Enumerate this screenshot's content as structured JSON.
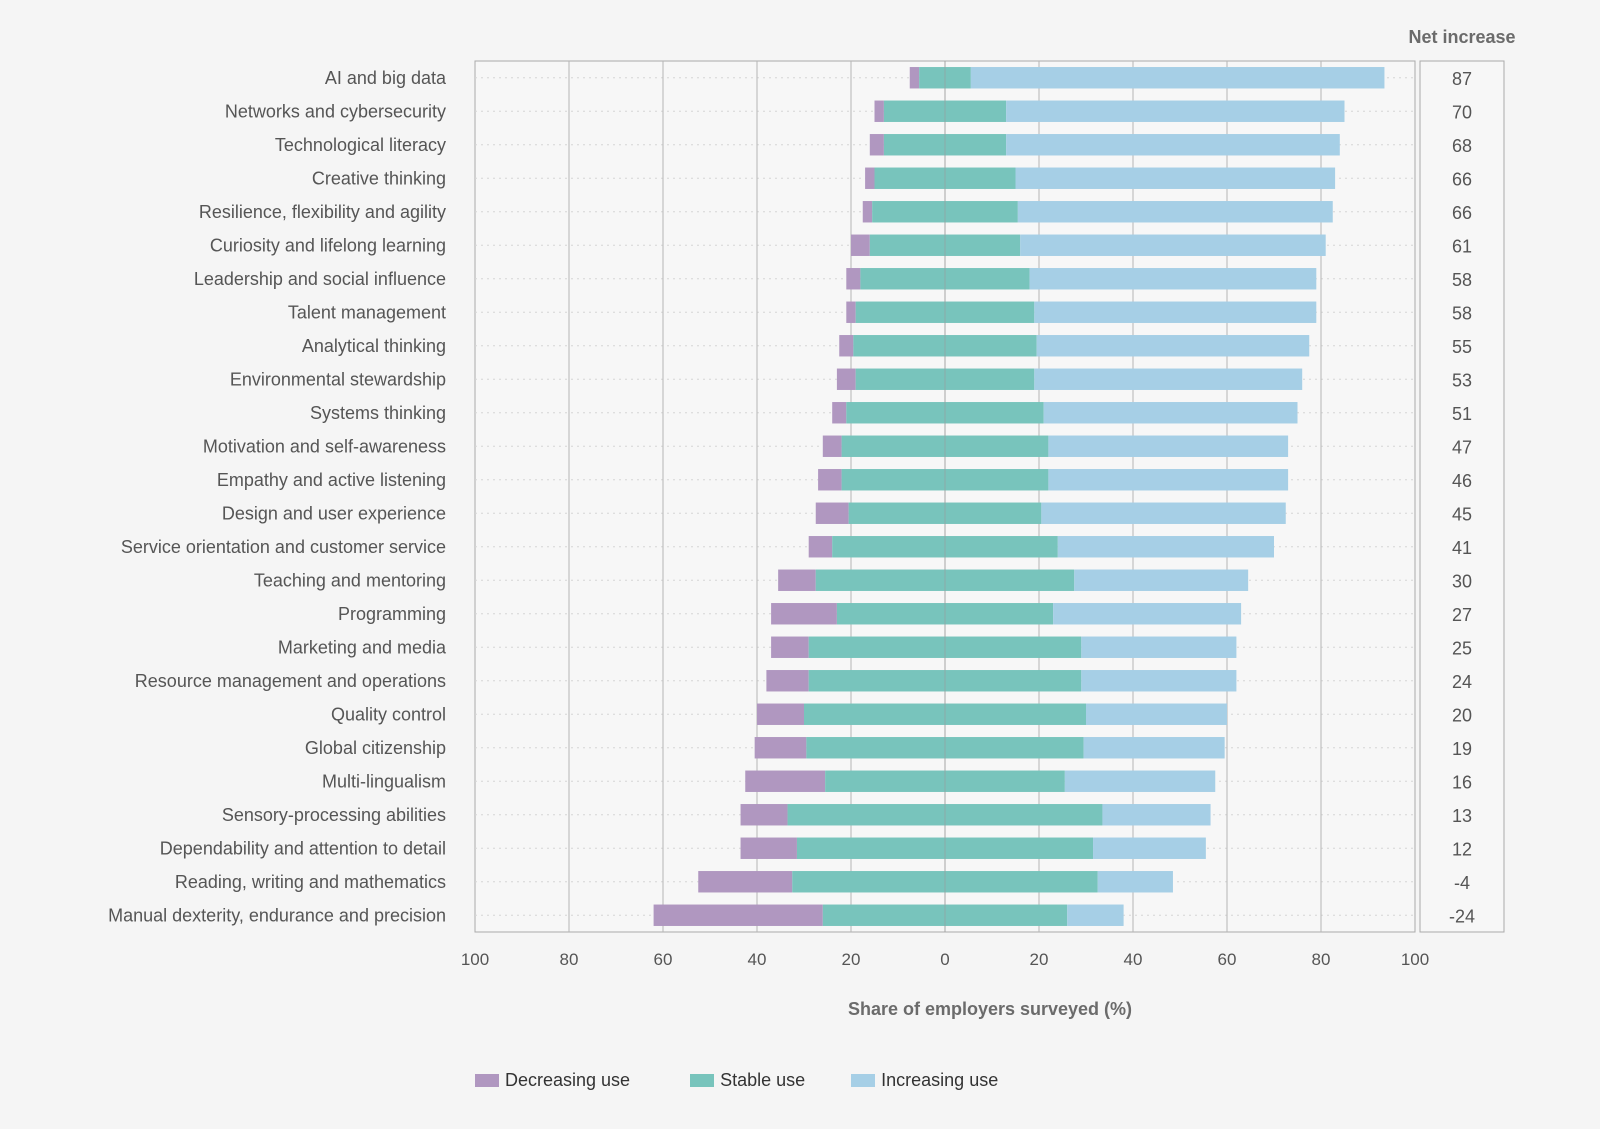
{
  "chart_data": {
    "type": "bar",
    "orientation": "horizontal",
    "stacked": true,
    "xlabel": "Share of employers surveyed (%)",
    "xlim": [
      -100,
      100
    ],
    "x_ticks": [
      "100",
      "80",
      "60",
      "40",
      "20",
      "0",
      "20",
      "40",
      "60",
      "80",
      "100"
    ],
    "grid": true,
    "legend_position": "bottom",
    "net_increase_title": "Net increase",
    "categories": [
      "AI and big data",
      "Networks and cybersecurity",
      "Technological literacy",
      "Creative thinking",
      "Resilience, flexibility and agility",
      "Curiosity and lifelong learning",
      "Leadership and social influence",
      "Talent management",
      "Analytical thinking",
      "Environmental stewardship",
      "Systems thinking",
      "Motivation and self-awareness",
      "Empathy and active listening",
      "Design and user experience",
      "Service orientation and customer service",
      "Teaching and mentoring",
      "Programming",
      "Marketing and media",
      "Resource management and operations",
      "Quality control",
      "Global citizenship",
      "Multi-lingualism",
      "Sensory-processing abilities",
      "Dependability and attention to detail",
      "Reading, writing and mathematics",
      "Manual dexterity, endurance and precision"
    ],
    "series": [
      {
        "name": "Decreasing use",
        "color": "#b097c0",
        "values": [
          2,
          2,
          3,
          2,
          2,
          4,
          3,
          2,
          3,
          4,
          3,
          4,
          5,
          7,
          5,
          8,
          14,
          8,
          9,
          10,
          11,
          17,
          10,
          12,
          20,
          36
        ]
      },
      {
        "name": "Stable use",
        "color": "#78c4bc",
        "values": [
          11,
          26,
          26,
          30,
          31,
          32,
          36,
          38,
          39,
          38,
          42,
          44,
          44,
          41,
          48,
          55,
          46,
          58,
          58,
          60,
          59,
          51,
          67,
          63,
          65,
          52
        ]
      },
      {
        "name": "Increasing use",
        "color": "#a6cfe6",
        "values": [
          88,
          72,
          71,
          68,
          67,
          65,
          61,
          60,
          58,
          57,
          54,
          51,
          51,
          52,
          46,
          37,
          40,
          33,
          33,
          30,
          30,
          32,
          23,
          24,
          16,
          12
        ]
      }
    ],
    "net_increase": [
      "87",
      "70",
      "68",
      "66",
      "66",
      "61",
      "58",
      "58",
      "55",
      "53",
      "51",
      "47",
      "46",
      "45",
      "41",
      "30",
      "27",
      "25",
      "24",
      "20",
      "19",
      "16",
      "13",
      "12",
      "-4",
      "-24"
    ]
  }
}
